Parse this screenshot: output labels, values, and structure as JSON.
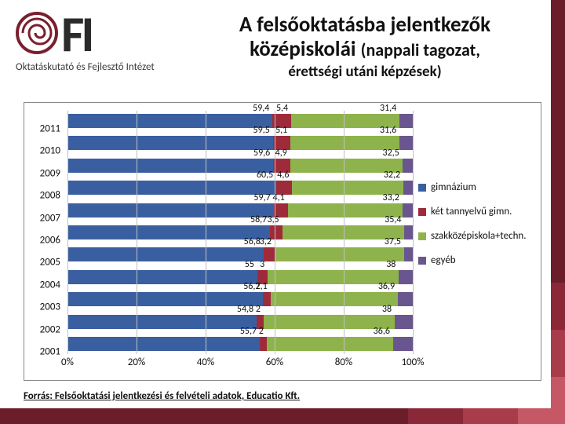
{
  "logo": {
    "letters": "FI",
    "subtext": "Oktatáskutató és Fejlesztő Intézet",
    "spiral_color": "#7a1f2e",
    "bar_color": "#2b2b2b"
  },
  "title": {
    "line1": "A felsőoktatásba jelentkezők",
    "line2_a": "középiskolái",
    "line2_b": "(nappali tagozat,",
    "line3": "érettségi utáni képzések)"
  },
  "chart": {
    "type": "stacked-horizontal-bar",
    "x_ticks": [
      "0%",
      "20%",
      "40%",
      "60%",
      "80%",
      "100%"
    ],
    "x_positions_pct": [
      0,
      20,
      40,
      60,
      80,
      100
    ],
    "grid_color": "#bfbfbf",
    "plot_bg": "#ffffff",
    "series": [
      {
        "name": "gimnázium",
        "color": "#3a5fa0"
      },
      {
        "name": "két tannyelvű gimn.",
        "color": "#9e2b3a"
      },
      {
        "name": "szakközépiskola+techn.",
        "color": "#8fb34c"
      },
      {
        "name": "egyéb",
        "color": "#6a568e"
      }
    ],
    "categories": [
      "2011",
      "2010",
      "2009",
      "2008",
      "2007",
      "2006",
      "2005",
      "2004",
      "2003",
      "2002",
      "2001"
    ],
    "data": [
      {
        "y": "2011",
        "v": [
          59.4,
          5.4,
          31.4,
          3.8
        ],
        "labels": [
          "59,4",
          "5,4",
          "31,4",
          ""
        ]
      },
      {
        "y": "2010",
        "v": [
          59.5,
          5.1,
          31.6,
          3.8
        ],
        "labels": [
          "59,5",
          "5,1",
          "31,6",
          ""
        ]
      },
      {
        "y": "2009",
        "v": [
          59.6,
          4.9,
          32.5,
          3.0
        ],
        "labels": [
          "59,6",
          "4,9",
          "32,5",
          ""
        ]
      },
      {
        "y": "2008",
        "v": [
          60.5,
          4.6,
          32.2,
          2.7
        ],
        "labels": [
          "60,5",
          "4,6",
          "32,2",
          ""
        ]
      },
      {
        "y": "2007",
        "v": [
          59.7,
          4.1,
          33.2,
          3.0
        ],
        "labels": [
          "59,7",
          "4,1",
          "33,2",
          ""
        ]
      },
      {
        "y": "2006",
        "v": [
          58.7,
          3.5,
          35.4,
          2.4
        ],
        "labels": [
          "58,7",
          "3,5",
          "35,4",
          ""
        ]
      },
      {
        "y": "2005",
        "v": [
          56.8,
          3.2,
          37.5,
          2.5
        ],
        "labels": [
          "56,8",
          "3,2",
          "37,5",
          ""
        ]
      },
      {
        "y": "2004",
        "v": [
          55.0,
          3.0,
          38.0,
          4.0
        ],
        "labels": [
          "55",
          "3",
          "38",
          ""
        ]
      },
      {
        "y": "2003",
        "v": [
          56.7,
          2.1,
          36.9,
          4.3
        ],
        "labels": [
          "56,7",
          "2,1",
          "36,9",
          ""
        ]
      },
      {
        "y": "2002",
        "v": [
          54.8,
          2.0,
          38.0,
          5.2
        ],
        "labels": [
          "54,8",
          "2",
          "38",
          ""
        ]
      },
      {
        "y": "2001",
        "v": [
          55.7,
          2.0,
          36.6,
          5.7
        ],
        "labels": [
          "55,7",
          "2",
          "36,6",
          ""
        ]
      }
    ]
  },
  "source": {
    "prefix": "Forrás: ",
    "text": "Felsőoktatási jelentkezési és felvételi adatok, Educatio Kft."
  }
}
